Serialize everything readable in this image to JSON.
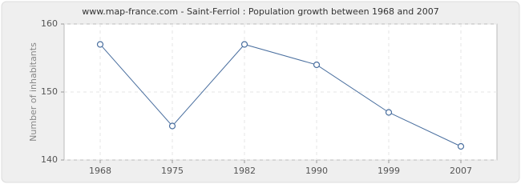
{
  "chart_data": {
    "type": "line",
    "title": "www.map-france.com - Saint-Ferriol : Population growth between 1968 and 2007",
    "y_label": "Number of inhabitants",
    "categories": [
      "1968",
      "1975",
      "1982",
      "1990",
      "1999",
      "2007"
    ],
    "values": [
      157,
      145,
      157,
      154,
      147,
      142
    ],
    "color": "#4a6f9f",
    "ylim": [
      140,
      160
    ],
    "yticks": [
      140,
      150,
      160
    ],
    "grid": true
  }
}
